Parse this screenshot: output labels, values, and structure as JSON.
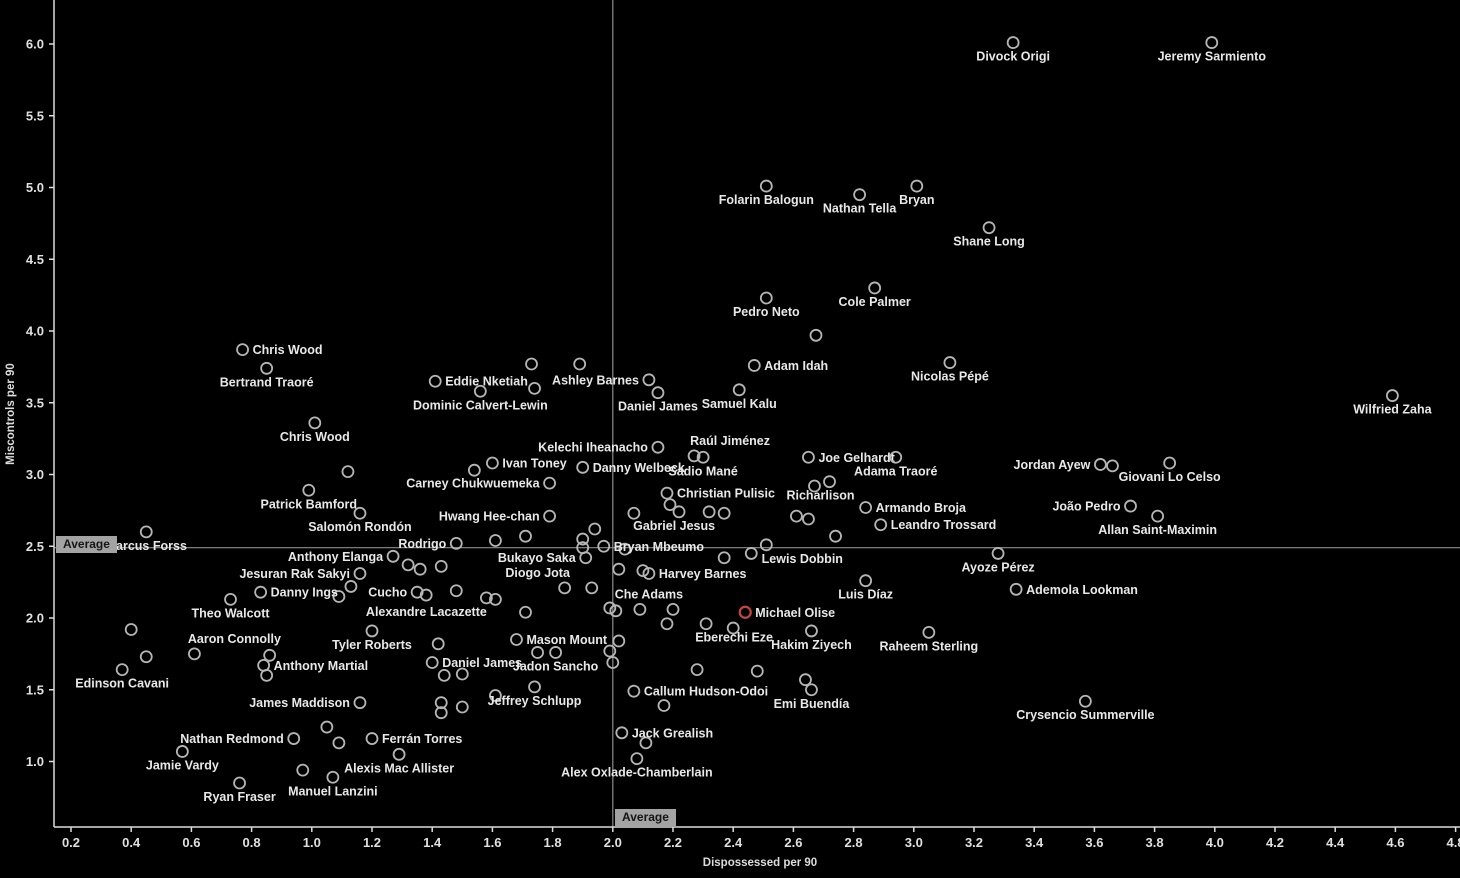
{
  "chart_data": {
    "type": "scatter",
    "title": "",
    "xlabel": "Dispossessed per 90",
    "ylabel": "Miscontrols per 90",
    "x_ticks": [
      0.2,
      0.4,
      0.6,
      0.8,
      1.0,
      1.2,
      1.4,
      1.6,
      1.8,
      2.0,
      2.2,
      2.4,
      2.6,
      2.8,
      3.0,
      3.2,
      3.4,
      3.6,
      3.8,
      4.0,
      4.2,
      4.4,
      4.6,
      4.8
    ],
    "y_ticks": [
      1.0,
      1.5,
      2.0,
      2.5,
      3.0,
      3.5,
      4.0,
      4.5,
      5.0,
      5.5,
      6.0
    ],
    "xlim": [
      0.14,
      4.82
    ],
    "ylim": [
      0.54,
      6.31
    ],
    "grid": false,
    "reference_lines": {
      "average_x": 2.0,
      "average_y": 2.49,
      "label": "Average"
    },
    "colors": {
      "point_stroke": "#b5b5b5",
      "highlight_stroke": "#c74440",
      "label_text": "#e8e8e8",
      "tick_text": "#e0e0e0",
      "axis_line": "#dcdcdc",
      "ref_line": "#8c8c8c",
      "background": "#000000"
    },
    "highlighted_player": "Michael Olise",
    "points": [
      {
        "n": "Divock Origi",
        "x": 3.33,
        "y": 6.01,
        "s": "b"
      },
      {
        "n": "Jeremy Sarmiento",
        "x": 3.99,
        "y": 6.01,
        "s": "b"
      },
      {
        "n": "Folarin Balogun",
        "x": 2.51,
        "y": 5.01,
        "s": "b"
      },
      {
        "n": "Nathan Tella",
        "x": 2.82,
        "y": 4.95,
        "s": "b"
      },
      {
        "n": "Bryan",
        "x": 3.01,
        "y": 5.01,
        "s": "b"
      },
      {
        "n": "Shane Long",
        "x": 3.25,
        "y": 4.72,
        "s": "b"
      },
      {
        "n": "Pedro Neto",
        "x": 2.51,
        "y": 4.23,
        "s": "b"
      },
      {
        "n": "Cole Palmer",
        "x": 2.87,
        "y": 4.3,
        "s": "b"
      },
      {
        "n": "Chris Wood",
        "x": 0.77,
        "y": 3.87,
        "s": "r"
      },
      {
        "n": "Bertrand Traoré",
        "x": 0.85,
        "y": 3.74,
        "s": "b"
      },
      {
        "n": "Chris Wood",
        "x": 1.01,
        "y": 3.36,
        "s": "b"
      },
      {
        "n": "Eddie Nketiah",
        "x": 1.41,
        "y": 3.65,
        "s": "r"
      },
      {
        "n": "Dominic Calvert-Lewin",
        "x": 1.56,
        "y": 3.58,
        "s": "b"
      },
      {
        "n": "Ashley Barnes",
        "x": 2.12,
        "y": 3.66,
        "s": "l"
      },
      {
        "n": "Daniel James",
        "x": 2.15,
        "y": 3.57,
        "s": "b"
      },
      {
        "n": "Samuel Kalu",
        "x": 2.42,
        "y": 3.59,
        "s": "b"
      },
      {
        "n": "Adam Idah",
        "x": 2.47,
        "y": 3.76,
        "s": "r"
      },
      {
        "n": "Nicolas Pépé",
        "x": 3.12,
        "y": 3.78,
        "s": "b"
      },
      {
        "n": "Wilfried Zaha",
        "x": 4.59,
        "y": 3.55,
        "s": "b"
      },
      {
        "n": "Kelechi Iheanacho",
        "x": 2.15,
        "y": 3.19,
        "s": "l"
      },
      {
        "n": "Raúl Jiménez",
        "x": 2.27,
        "y": 3.13,
        "s": "a",
        "ox": 36
      },
      {
        "n": "Sadio Mané",
        "x": 2.3,
        "y": 3.12,
        "s": "b"
      },
      {
        "n": "Joe Gelhardt",
        "x": 2.65,
        "y": 3.12,
        "s": "r"
      },
      {
        "n": "Adama Traoré",
        "x": 2.94,
        "y": 3.12,
        "s": "b"
      },
      {
        "n": "Jordan Ayew",
        "x": 3.62,
        "y": 3.07,
        "s": "l"
      },
      {
        "n": "Giovani Lo Celso",
        "x": 3.85,
        "y": 3.08,
        "s": "b"
      },
      {
        "n": "Ivan Toney",
        "x": 1.6,
        "y": 3.08,
        "s": "r"
      },
      {
        "n": "Carney Chukwuemeka",
        "x": 1.79,
        "y": 2.94,
        "s": "l"
      },
      {
        "n": "Danny Welbeck",
        "x": 1.9,
        "y": 3.05,
        "s": "r"
      },
      {
        "n": "Christian Pulisic",
        "x": 2.18,
        "y": 2.87,
        "s": "r"
      },
      {
        "n": "Hwang Hee-chan",
        "x": 1.79,
        "y": 2.71,
        "s": "l"
      },
      {
        "n": "Patrick Bamford",
        "x": 0.99,
        "y": 2.89,
        "s": "b"
      },
      {
        "n": "Salomón Rondón",
        "x": 1.16,
        "y": 2.73,
        "s": "b"
      },
      {
        "n": "Richarlison",
        "x": 2.72,
        "y": 2.95,
        "s": "b",
        "ox": -9
      },
      {
        "n": "Armando Broja",
        "x": 2.84,
        "y": 2.77,
        "s": "r"
      },
      {
        "n": "Leandro Trossard",
        "x": 2.89,
        "y": 2.65,
        "s": "r"
      },
      {
        "n": "João Pedro",
        "x": 3.72,
        "y": 2.78,
        "s": "l"
      },
      {
        "n": "Allan Saint-Maximin",
        "x": 3.81,
        "y": 2.71,
        "s": "b"
      },
      {
        "n": "Marcus Forss",
        "x": 0.45,
        "y": 2.6,
        "s": "b"
      },
      {
        "n": "Gabriel Jesus",
        "x": 2.32,
        "y": 2.74,
        "s": "b",
        "ox": -35
      },
      {
        "n": "Bryan Mbeumo",
        "x": 1.97,
        "y": 2.5,
        "s": "r"
      },
      {
        "n": "Lewis Dobbin",
        "x": 2.51,
        "y": 2.51,
        "s": "b",
        "ox": 36
      },
      {
        "n": "Anthony Elanga",
        "x": 1.27,
        "y": 2.43,
        "s": "l"
      },
      {
        "n": "Rodrigo",
        "x": 1.48,
        "y": 2.52,
        "s": "l"
      },
      {
        "n": "Bukayo Saka",
        "x": 1.91,
        "y": 2.42,
        "s": "l"
      },
      {
        "n": "Diogo Jota",
        "x": 1.84,
        "y": 2.21,
        "s": "a",
        "ox": -27
      },
      {
        "n": "Jesuran Rak Sakyi",
        "x": 1.16,
        "y": 2.31,
        "s": "l"
      },
      {
        "n": "Danny Ings",
        "x": 0.83,
        "y": 2.18,
        "s": "r"
      },
      {
        "n": "Cucho",
        "x": 1.35,
        "y": 2.18,
        "s": "l"
      },
      {
        "n": "Theo Walcott",
        "x": 0.73,
        "y": 2.13,
        "s": "b"
      },
      {
        "n": "Alexandre Lacazette",
        "x": 1.58,
        "y": 2.14,
        "s": "b",
        "ox": -60
      },
      {
        "n": "Ayoze Pérez",
        "x": 3.28,
        "y": 2.45,
        "s": "b"
      },
      {
        "n": "Ademola Lookman",
        "x": 3.34,
        "y": 2.2,
        "s": "r"
      },
      {
        "n": "Luis Díaz",
        "x": 2.84,
        "y": 2.26,
        "s": "b"
      },
      {
        "n": "Harvey Barnes",
        "x": 2.12,
        "y": 2.31,
        "s": "r"
      },
      {
        "n": "Che Adams",
        "x": 2.09,
        "y": 2.06,
        "s": "a",
        "ox": 9
      },
      {
        "n": "Michael Olise",
        "x": 2.44,
        "y": 2.04,
        "s": "r",
        "hl": true
      },
      {
        "n": "Mason Mount",
        "x": 1.68,
        "y": 1.85,
        "s": "r"
      },
      {
        "n": "Eberechi Eze",
        "x": 2.31,
        "y": 1.96,
        "s": "b",
        "ox": 28
      },
      {
        "n": "Hakim Ziyech",
        "x": 2.66,
        "y": 1.91,
        "s": "b"
      },
      {
        "n": "Raheem Sterling",
        "x": 3.05,
        "y": 1.9,
        "s": "b"
      },
      {
        "n": "Aaron Connolly",
        "x": 0.61,
        "y": 1.75,
        "s": "a",
        "ox": 40
      },
      {
        "n": "Anthony Martial",
        "x": 0.84,
        "y": 1.67,
        "s": "r"
      },
      {
        "n": "Tyler Roberts",
        "x": 1.2,
        "y": 1.91,
        "s": "b"
      },
      {
        "n": "Daniel James",
        "x": 1.4,
        "y": 1.69,
        "s": "r"
      },
      {
        "n": "Jadon Sancho",
        "x": 1.81,
        "y": 1.76,
        "s": "b"
      },
      {
        "n": "Edinson Cavani",
        "x": 0.37,
        "y": 1.64,
        "s": "b"
      },
      {
        "n": "James Maddison",
        "x": 1.16,
        "y": 1.41,
        "s": "l"
      },
      {
        "n": "Jeffrey Schlupp",
        "x": 1.74,
        "y": 1.52,
        "s": "b"
      },
      {
        "n": "Callum Hudson-Odoi",
        "x": 2.07,
        "y": 1.49,
        "s": "r"
      },
      {
        "n": "Emi Buendía",
        "x": 2.66,
        "y": 1.5,
        "s": "b"
      },
      {
        "n": "Crysencio Summerville",
        "x": 3.57,
        "y": 1.42,
        "s": "b"
      },
      {
        "n": "Nathan Redmond",
        "x": 0.94,
        "y": 1.16,
        "s": "l"
      },
      {
        "n": "Ferrán Torres",
        "x": 1.2,
        "y": 1.16,
        "s": "r"
      },
      {
        "n": "Jamie Vardy",
        "x": 0.57,
        "y": 1.07,
        "s": "b"
      },
      {
        "n": "Alexis Mac Allister",
        "x": 1.29,
        "y": 1.05,
        "s": "b"
      },
      {
        "n": "Manuel Lanzini",
        "x": 1.07,
        "y": 0.89,
        "s": "b"
      },
      {
        "n": "Ryan Fraser",
        "x": 0.76,
        "y": 0.85,
        "s": "b"
      },
      {
        "n": "Jack Grealish",
        "x": 2.03,
        "y": 1.2,
        "s": "r"
      },
      {
        "n": "Alex Oxlade-Chamberlain",
        "x": 2.08,
        "y": 1.02,
        "s": "b"
      }
    ],
    "unlabeled_points": [
      [
        2.675,
        3.97
      ],
      [
        1.73,
        3.77
      ],
      [
        1.89,
        3.77
      ],
      [
        1.74,
        3.6
      ],
      [
        1.12,
        3.02
      ],
      [
        1.54,
        3.03
      ],
      [
        3.66,
        3.06
      ],
      [
        2.67,
        2.92
      ],
      [
        2.61,
        2.71
      ],
      [
        2.65,
        2.69
      ],
      [
        2.74,
        2.57
      ],
      [
        2.19,
        2.79
      ],
      [
        2.22,
        2.74
      ],
      [
        2.07,
        2.73
      ],
      [
        2.37,
        2.73
      ],
      [
        1.61,
        2.54
      ],
      [
        1.71,
        2.57
      ],
      [
        1.32,
        2.37
      ],
      [
        1.36,
        2.34
      ],
      [
        1.43,
        2.36
      ],
      [
        1.9,
        2.55
      ],
      [
        1.94,
        2.62
      ],
      [
        1.9,
        2.49
      ],
      [
        2.04,
        2.48
      ],
      [
        2.02,
        2.34
      ],
      [
        2.37,
        2.42
      ],
      [
        2.46,
        2.45
      ],
      [
        2.1,
        2.33
      ],
      [
        1.99,
        2.07
      ],
      [
        2.01,
        2.05
      ],
      [
        2.2,
        2.06
      ],
      [
        1.09,
        2.15
      ],
      [
        1.13,
        2.22
      ],
      [
        1.38,
        2.16
      ],
      [
        1.48,
        2.19
      ],
      [
        1.61,
        2.13
      ],
      [
        1.71,
        2.04
      ],
      [
        1.93,
        2.21
      ],
      [
        2.02,
        1.84
      ],
      [
        2.18,
        1.96
      ],
      [
        2.4,
        1.93
      ],
      [
        1.75,
        1.76
      ],
      [
        1.42,
        1.82
      ],
      [
        1.44,
        1.6
      ],
      [
        1.5,
        1.61
      ],
      [
        0.86,
        1.74
      ],
      [
        0.85,
        1.6
      ],
      [
        0.4,
        1.92
      ],
      [
        0.45,
        1.73
      ],
      [
        2.64,
        1.57
      ],
      [
        2.28,
        1.64
      ],
      [
        2.48,
        1.63
      ],
      [
        1.99,
        1.77
      ],
      [
        2.0,
        1.69
      ],
      [
        2.17,
        1.39
      ],
      [
        1.43,
        1.41
      ],
      [
        1.43,
        1.34
      ],
      [
        1.5,
        1.38
      ],
      [
        1.61,
        1.46
      ],
      [
        1.05,
        1.24
      ],
      [
        1.09,
        1.13
      ],
      [
        0.97,
        0.94
      ],
      [
        2.11,
        1.13
      ]
    ]
  },
  "badges": {
    "average_y": "Average",
    "average_x": "Average"
  }
}
